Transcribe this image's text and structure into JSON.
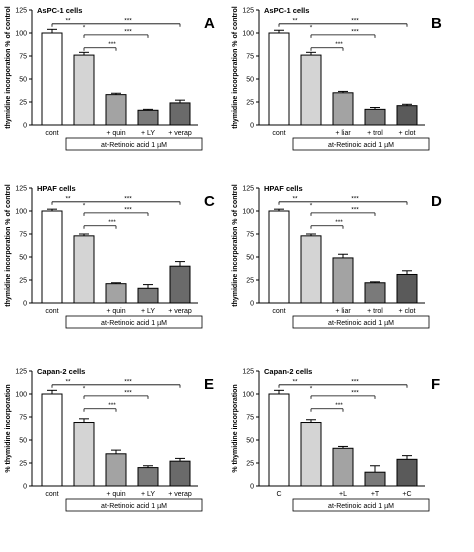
{
  "chart_data": [
    {
      "type": "bar",
      "letter": "A",
      "title": "AsPC-1 cells",
      "ylabel": "thymidine incorporation % of control",
      "ylim": [
        0,
        125
      ],
      "yticks": [
        0,
        25,
        50,
        75,
        100,
        125
      ],
      "categories": [
        "cont",
        "",
        "+ quin",
        "+ LY",
        "+ verap"
      ],
      "values": [
        100,
        76,
        33,
        16,
        24
      ],
      "errors": [
        4,
        3,
        1.5,
        1,
        3
      ],
      "colors": [
        "#ffffff",
        "#d4d4d4",
        "#a3a3a3",
        "#7a7a7a",
        "#6a6a6a"
      ],
      "box_label": "at-Retinoic acid 1 µM",
      "sig_main": "**",
      "sig_ast": "*",
      "brackets": [
        {
          "from": 0,
          "to": 4,
          "label": "***"
        },
        {
          "from": 1,
          "to": 3,
          "label": "***"
        },
        {
          "from": 1,
          "to": 2,
          "label": "***"
        }
      ]
    },
    {
      "type": "bar",
      "letter": "B",
      "title": "AsPC-1 cells",
      "ylabel": "thymidine incorporation % of control",
      "ylim": [
        0,
        125
      ],
      "yticks": [
        0,
        25,
        50,
        75,
        100,
        125
      ],
      "categories": [
        "cont",
        "",
        "+ liar",
        "+ trol",
        "+ clot"
      ],
      "values": [
        100,
        76,
        35,
        17,
        21
      ],
      "errors": [
        3,
        3,
        1.5,
        2,
        1.5
      ],
      "colors": [
        "#ffffff",
        "#d4d4d4",
        "#a3a3a3",
        "#7a7a7a",
        "#5a5a5a"
      ],
      "box_label": "at-Retinoic acid 1 µM",
      "sig_main": "**",
      "sig_ast": "*",
      "brackets": [
        {
          "from": 0,
          "to": 4,
          "label": "***"
        },
        {
          "from": 1,
          "to": 3,
          "label": "***"
        },
        {
          "from": 1,
          "to": 2,
          "label": "***"
        }
      ]
    },
    {
      "type": "bar",
      "letter": "C",
      "title": "HPAF cells",
      "ylabel": "thymidine incorporation % of control",
      "ylim": [
        0,
        125
      ],
      "yticks": [
        0,
        25,
        50,
        75,
        100,
        125
      ],
      "categories": [
        "cont",
        "",
        "+ quin",
        "+ LY",
        "+ verap"
      ],
      "values": [
        100,
        73,
        21,
        16,
        40
      ],
      "errors": [
        2,
        2,
        1,
        4,
        5
      ],
      "colors": [
        "#ffffff",
        "#d4d4d4",
        "#a3a3a3",
        "#7a7a7a",
        "#6a6a6a"
      ],
      "box_label": "at-Retinoic acid 1 µM",
      "sig_main": "**",
      "sig_ast": "*",
      "brackets": [
        {
          "from": 0,
          "to": 4,
          "label": "***"
        },
        {
          "from": 1,
          "to": 3,
          "label": "***"
        },
        {
          "from": 1,
          "to": 2,
          "label": "***"
        }
      ]
    },
    {
      "type": "bar",
      "letter": "D",
      "title": "HPAF cells",
      "ylabel": "thymidine incorporation % of control",
      "ylim": [
        0,
        125
      ],
      "yticks": [
        0,
        25,
        50,
        75,
        100,
        125
      ],
      "categories": [
        "cont",
        "",
        "+ liar",
        "+ trol",
        "+ clot"
      ],
      "values": [
        100,
        73,
        49,
        22,
        31
      ],
      "errors": [
        2,
        2,
        4,
        1,
        4
      ],
      "colors": [
        "#ffffff",
        "#d4d4d4",
        "#a3a3a3",
        "#7a7a7a",
        "#5a5a5a"
      ],
      "box_label": "at-Retinoic acid 1 µM",
      "sig_main": "**",
      "sig_ast": "*",
      "brackets": [
        {
          "from": 0,
          "to": 4,
          "label": "***"
        },
        {
          "from": 1,
          "to": 3,
          "label": "***"
        },
        {
          "from": 1,
          "to": 2,
          "label": "***"
        }
      ]
    },
    {
      "type": "bar",
      "letter": "E",
      "title": "Capan-2 cells",
      "ylabel": "% thymidine incorporation",
      "ylim": [
        0,
        125
      ],
      "yticks": [
        0,
        25,
        50,
        75,
        100,
        125
      ],
      "categories": [
        "cont",
        "",
        "+ quin",
        "+ LY",
        "+ verap"
      ],
      "values": [
        100,
        69,
        35,
        20,
        27
      ],
      "errors": [
        4,
        4,
        4,
        2,
        3
      ],
      "colors": [
        "#ffffff",
        "#d4d4d4",
        "#a3a3a3",
        "#7a7a7a",
        "#6a6a6a"
      ],
      "box_label": "at-Retinoic acid 1 µM",
      "sig_main": "**",
      "sig_ast": "*",
      "brackets": [
        {
          "from": 0,
          "to": 4,
          "label": "***"
        },
        {
          "from": 1,
          "to": 3,
          "label": "***"
        },
        {
          "from": 1,
          "to": 2,
          "label": "***"
        }
      ]
    },
    {
      "type": "bar",
      "letter": "F",
      "title": "Capan-2 cells",
      "ylabel": "% thymidine incorporation",
      "ylim": [
        0,
        125
      ],
      "yticks": [
        0,
        25,
        50,
        75,
        100,
        125
      ],
      "categories": [
        "C",
        "",
        "+L",
        "+T",
        "+C"
      ],
      "values": [
        100,
        69,
        41,
        15,
        29
      ],
      "errors": [
        4,
        3,
        2,
        7,
        4
      ],
      "colors": [
        "#ffffff",
        "#d4d4d4",
        "#a3a3a3",
        "#7a7a7a",
        "#5a5a5a"
      ],
      "box_label": "at-Retinoic acid 1 µM",
      "sig_main": "**",
      "sig_ast": "*",
      "brackets": [
        {
          "from": 0,
          "to": 4,
          "label": "***"
        },
        {
          "from": 1,
          "to": 3,
          "label": "***"
        },
        {
          "from": 1,
          "to": 2,
          "label": "***"
        }
      ]
    }
  ]
}
